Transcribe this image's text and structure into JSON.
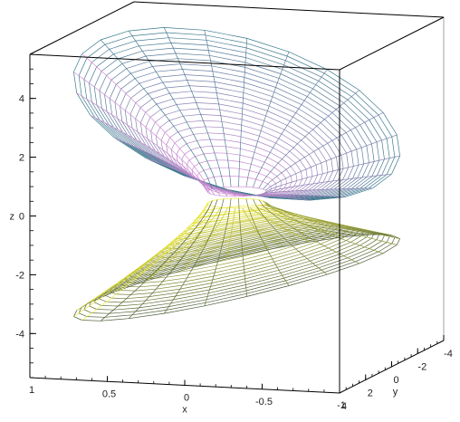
{
  "chart_data": {
    "type": "3d-surface",
    "title": "",
    "surface": "two helical (helicoid-like) wireframe sheets sharing a central axis along z",
    "axes": {
      "x": {
        "label": "x",
        "range": [
          -1,
          1
        ],
        "ticks": [
          {
            "value": 1,
            "label": "1"
          },
          {
            "value": 0.5,
            "label": "0.5"
          },
          {
            "value": 0,
            "label": "0"
          },
          {
            "value": -0.5,
            "label": "-0.5"
          },
          {
            "value": -1,
            "label": "-1"
          }
        ]
      },
      "y": {
        "label": "y",
        "range": [
          -4,
          4
        ],
        "ticks": [
          {
            "value": 4,
            "label": "4"
          },
          {
            "value": 2,
            "label": "2"
          },
          {
            "value": 0,
            "label": "0"
          },
          {
            "value": -2,
            "label": "-2"
          },
          {
            "value": -4,
            "label": "-4"
          }
        ]
      },
      "z": {
        "label": "z",
        "range": [
          -5.5,
          5.5
        ],
        "ticks": [
          {
            "value": 4,
            "label": "4"
          },
          {
            "value": 2,
            "label": "2"
          },
          {
            "value": 0,
            "label": "0"
          },
          {
            "value": -2,
            "label": "-2"
          },
          {
            "value": -4,
            "label": "-4"
          }
        ]
      }
    },
    "bounding_box": "boxed",
    "colors": {
      "upper_sheet_left": "#d98cd9",
      "upper_sheet_right": "#3a7a8c",
      "lower_sheet_left": "#f2ee3a",
      "lower_sheet_right": "#4a5a38",
      "box_line": "#000000"
    }
  }
}
